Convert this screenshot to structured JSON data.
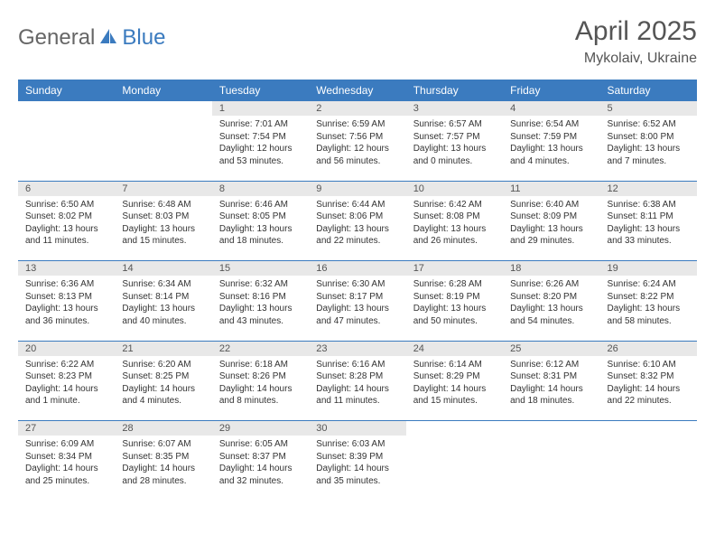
{
  "logo": {
    "part1": "General",
    "part2": "Blue"
  },
  "title": "April 2025",
  "location": "Mykolaiv, Ukraine",
  "colors": {
    "header_bg": "#3b7bbf",
    "header_text": "#ffffff",
    "daynum_bg": "#e8e8e8",
    "border": "#3b7bbf",
    "logo_gray": "#666666",
    "logo_blue": "#3b7bbf"
  },
  "day_headers": [
    "Sunday",
    "Monday",
    "Tuesday",
    "Wednesday",
    "Thursday",
    "Friday",
    "Saturday"
  ],
  "weeks": [
    [
      null,
      null,
      {
        "n": "1",
        "sr": "7:01 AM",
        "ss": "7:54 PM",
        "dl": "12 hours and 53 minutes."
      },
      {
        "n": "2",
        "sr": "6:59 AM",
        "ss": "7:56 PM",
        "dl": "12 hours and 56 minutes."
      },
      {
        "n": "3",
        "sr": "6:57 AM",
        "ss": "7:57 PM",
        "dl": "13 hours and 0 minutes."
      },
      {
        "n": "4",
        "sr": "6:54 AM",
        "ss": "7:59 PM",
        "dl": "13 hours and 4 minutes."
      },
      {
        "n": "5",
        "sr": "6:52 AM",
        "ss": "8:00 PM",
        "dl": "13 hours and 7 minutes."
      }
    ],
    [
      {
        "n": "6",
        "sr": "6:50 AM",
        "ss": "8:02 PM",
        "dl": "13 hours and 11 minutes."
      },
      {
        "n": "7",
        "sr": "6:48 AM",
        "ss": "8:03 PM",
        "dl": "13 hours and 15 minutes."
      },
      {
        "n": "8",
        "sr": "6:46 AM",
        "ss": "8:05 PM",
        "dl": "13 hours and 18 minutes."
      },
      {
        "n": "9",
        "sr": "6:44 AM",
        "ss": "8:06 PM",
        "dl": "13 hours and 22 minutes."
      },
      {
        "n": "10",
        "sr": "6:42 AM",
        "ss": "8:08 PM",
        "dl": "13 hours and 26 minutes."
      },
      {
        "n": "11",
        "sr": "6:40 AM",
        "ss": "8:09 PM",
        "dl": "13 hours and 29 minutes."
      },
      {
        "n": "12",
        "sr": "6:38 AM",
        "ss": "8:11 PM",
        "dl": "13 hours and 33 minutes."
      }
    ],
    [
      {
        "n": "13",
        "sr": "6:36 AM",
        "ss": "8:13 PM",
        "dl": "13 hours and 36 minutes."
      },
      {
        "n": "14",
        "sr": "6:34 AM",
        "ss": "8:14 PM",
        "dl": "13 hours and 40 minutes."
      },
      {
        "n": "15",
        "sr": "6:32 AM",
        "ss": "8:16 PM",
        "dl": "13 hours and 43 minutes."
      },
      {
        "n": "16",
        "sr": "6:30 AM",
        "ss": "8:17 PM",
        "dl": "13 hours and 47 minutes."
      },
      {
        "n": "17",
        "sr": "6:28 AM",
        "ss": "8:19 PM",
        "dl": "13 hours and 50 minutes."
      },
      {
        "n": "18",
        "sr": "6:26 AM",
        "ss": "8:20 PM",
        "dl": "13 hours and 54 minutes."
      },
      {
        "n": "19",
        "sr": "6:24 AM",
        "ss": "8:22 PM",
        "dl": "13 hours and 58 minutes."
      }
    ],
    [
      {
        "n": "20",
        "sr": "6:22 AM",
        "ss": "8:23 PM",
        "dl": "14 hours and 1 minute."
      },
      {
        "n": "21",
        "sr": "6:20 AM",
        "ss": "8:25 PM",
        "dl": "14 hours and 4 minutes."
      },
      {
        "n": "22",
        "sr": "6:18 AM",
        "ss": "8:26 PM",
        "dl": "14 hours and 8 minutes."
      },
      {
        "n": "23",
        "sr": "6:16 AM",
        "ss": "8:28 PM",
        "dl": "14 hours and 11 minutes."
      },
      {
        "n": "24",
        "sr": "6:14 AM",
        "ss": "8:29 PM",
        "dl": "14 hours and 15 minutes."
      },
      {
        "n": "25",
        "sr": "6:12 AM",
        "ss": "8:31 PM",
        "dl": "14 hours and 18 minutes."
      },
      {
        "n": "26",
        "sr": "6:10 AM",
        "ss": "8:32 PM",
        "dl": "14 hours and 22 minutes."
      }
    ],
    [
      {
        "n": "27",
        "sr": "6:09 AM",
        "ss": "8:34 PM",
        "dl": "14 hours and 25 minutes."
      },
      {
        "n": "28",
        "sr": "6:07 AM",
        "ss": "8:35 PM",
        "dl": "14 hours and 28 minutes."
      },
      {
        "n": "29",
        "sr": "6:05 AM",
        "ss": "8:37 PM",
        "dl": "14 hours and 32 minutes."
      },
      {
        "n": "30",
        "sr": "6:03 AM",
        "ss": "8:39 PM",
        "dl": "14 hours and 35 minutes."
      },
      null,
      null,
      null
    ]
  ],
  "labels": {
    "sunrise": "Sunrise:",
    "sunset": "Sunset:",
    "daylight": "Daylight:"
  }
}
